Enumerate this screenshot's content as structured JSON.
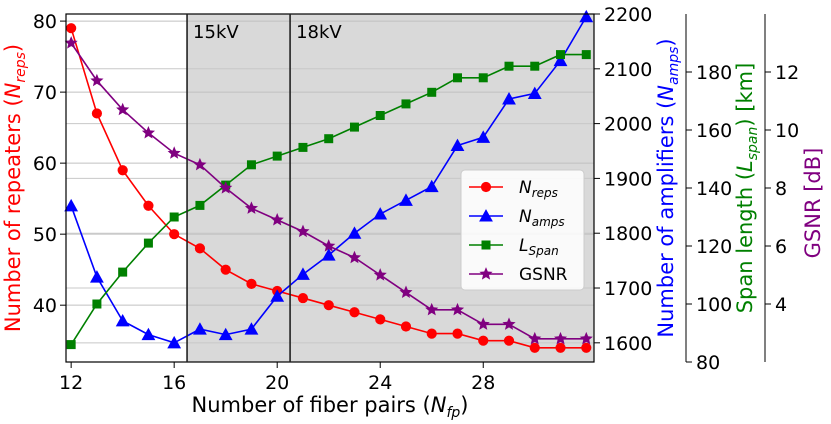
{
  "chart_data": {
    "type": "line",
    "xlabel": {
      "main": "Number of fiber pairs (",
      "sub": "fp",
      "italic": "N",
      "tail": ")"
    },
    "x_ticks": [
      12,
      16,
      20,
      24,
      28
    ],
    "xlim": [
      11.8,
      32.3
    ],
    "shaded_from": 16.5,
    "region_labels": [
      {
        "x": 16.5,
        "text": "15kV"
      },
      {
        "x": 20.5,
        "text": "18kV"
      }
    ],
    "x": [
      12,
      13,
      14,
      15,
      16,
      17,
      18,
      19,
      20,
      21,
      22,
      23,
      24,
      25,
      26,
      27,
      28,
      29,
      30,
      31,
      32
    ],
    "axes": [
      {
        "id": "reps",
        "side": "left",
        "label": {
          "pre": "Number of repeaters (",
          "italic": "N",
          "sub": "reps",
          "tail": ")"
        },
        "color": "#ff0000",
        "ylim": [
          32,
          81
        ],
        "ticks": [
          40,
          50,
          60,
          70,
          80
        ],
        "grid_ticks": [
          40,
          50,
          60,
          70,
          80
        ]
      },
      {
        "id": "amps",
        "side": "right",
        "label": {
          "pre": "Number of amplifiers (",
          "italic": "N",
          "sub": "amps",
          "tail": ")"
        },
        "color": "#0000ff",
        "ylim": [
          1565,
          2200
        ],
        "ticks": [
          1600,
          1700,
          1800,
          1900,
          2000,
          2100,
          2200
        ]
      },
      {
        "id": "span",
        "side": "right",
        "label": {
          "pre": "Span length (",
          "italic": "L",
          "sub": "span",
          "tail": ") [km]"
        },
        "color": "#008000",
        "ylim": [
          80,
          200
        ],
        "ticks": [
          80,
          100,
          120,
          140,
          160,
          180
        ]
      },
      {
        "id": "gsnr",
        "side": "right",
        "label": {
          "pre": "GSNR [dB]",
          "italic": "",
          "sub": "",
          "tail": ""
        },
        "color": "#800080",
        "ylim": [
          2,
          14
        ],
        "ticks": [
          4,
          6,
          8,
          10,
          12
        ]
      }
    ],
    "series": [
      {
        "name": "N",
        "name_sub": "reps",
        "axis": "reps",
        "color": "#ff0000",
        "marker": "circle",
        "values": [
          79,
          67,
          59,
          54,
          50,
          48,
          45,
          43,
          42,
          41,
          40,
          39,
          38,
          37,
          36,
          36,
          35,
          35,
          34,
          34,
          34
        ]
      },
      {
        "name": "N",
        "name_sub": "amps",
        "axis": "amps",
        "color": "#0000ff",
        "marker": "triangle",
        "values": [
          1850,
          1720,
          1640,
          1615,
          1600,
          1625,
          1615,
          1625,
          1685,
          1725,
          1760,
          1800,
          1835,
          1860,
          1885,
          1960,
          1975,
          2045,
          2055,
          2115,
          2195
        ]
      },
      {
        "name": "L",
        "name_sub": "Span",
        "axis": "span",
        "color": "#008000",
        "marker": "square",
        "values": [
          86,
          100,
          111,
          121,
          130,
          134,
          141,
          148,
          151,
          154,
          157,
          161,
          165,
          169,
          173,
          178,
          178,
          182,
          182,
          186,
          186
        ]
      },
      {
        "name": "GSNR",
        "name_sub": "",
        "axis": "gsnr",
        "color": "#800080",
        "marker": "star",
        "values": [
          13,
          11.7,
          10.7,
          9.9,
          9.2,
          8.8,
          8.0,
          7.3,
          6.9,
          6.5,
          6.0,
          5.6,
          5.0,
          4.4,
          3.8,
          3.8,
          3.3,
          3.3,
          2.8,
          2.8,
          2.8
        ]
      }
    ],
    "legend_position": "center-right",
    "grid": true
  }
}
